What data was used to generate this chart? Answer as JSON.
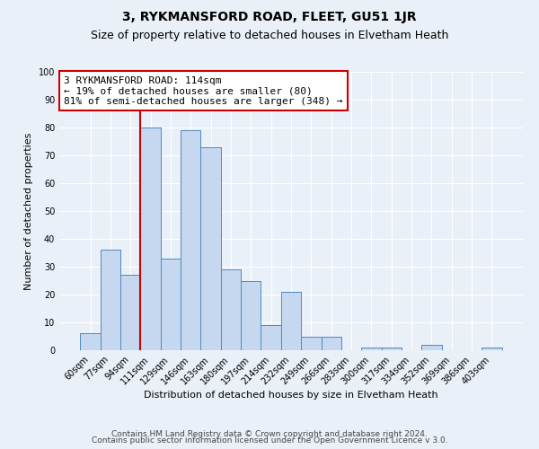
{
  "title": "3, RYKMANSFORD ROAD, FLEET, GU51 1JR",
  "subtitle": "Size of property relative to detached houses in Elvetham Heath",
  "xlabel": "Distribution of detached houses by size in Elvetham Heath",
  "ylabel": "Number of detached properties",
  "bar_labels": [
    "60sqm",
    "77sqm",
    "94sqm",
    "111sqm",
    "129sqm",
    "146sqm",
    "163sqm",
    "180sqm",
    "197sqm",
    "214sqm",
    "232sqm",
    "249sqm",
    "266sqm",
    "283sqm",
    "300sqm",
    "317sqm",
    "334sqm",
    "352sqm",
    "369sqm",
    "386sqm",
    "403sqm"
  ],
  "bar_values": [
    6,
    36,
    27,
    80,
    33,
    79,
    73,
    29,
    25,
    9,
    21,
    5,
    5,
    0,
    1,
    1,
    0,
    2,
    0,
    0,
    1
  ],
  "bar_color": "#c5d8f0",
  "bar_edge_color": "#4d8abf",
  "vline_color": "#cc0000",
  "vline_pos": 2.5,
  "annotation_text": "3 RYKMANSFORD ROAD: 114sqm\n← 19% of detached houses are smaller (80)\n81% of semi-detached houses are larger (348) →",
  "annotation_box_color": "#ffffff",
  "annotation_box_edge": "#cc0000",
  "ylim": [
    0,
    100
  ],
  "yticks": [
    0,
    10,
    20,
    30,
    40,
    50,
    60,
    70,
    80,
    90,
    100
  ],
  "bg_color": "#eaf0f8",
  "grid_color": "#ffffff",
  "footer_line1": "Contains HM Land Registry data © Crown copyright and database right 2024.",
  "footer_line2": "Contains public sector information licensed under the Open Government Licence v 3.0.",
  "title_fontsize": 10,
  "subtitle_fontsize": 9,
  "axis_fontsize": 8,
  "tick_fontsize": 7,
  "annotation_fontsize": 8,
  "footer_fontsize": 6.5
}
